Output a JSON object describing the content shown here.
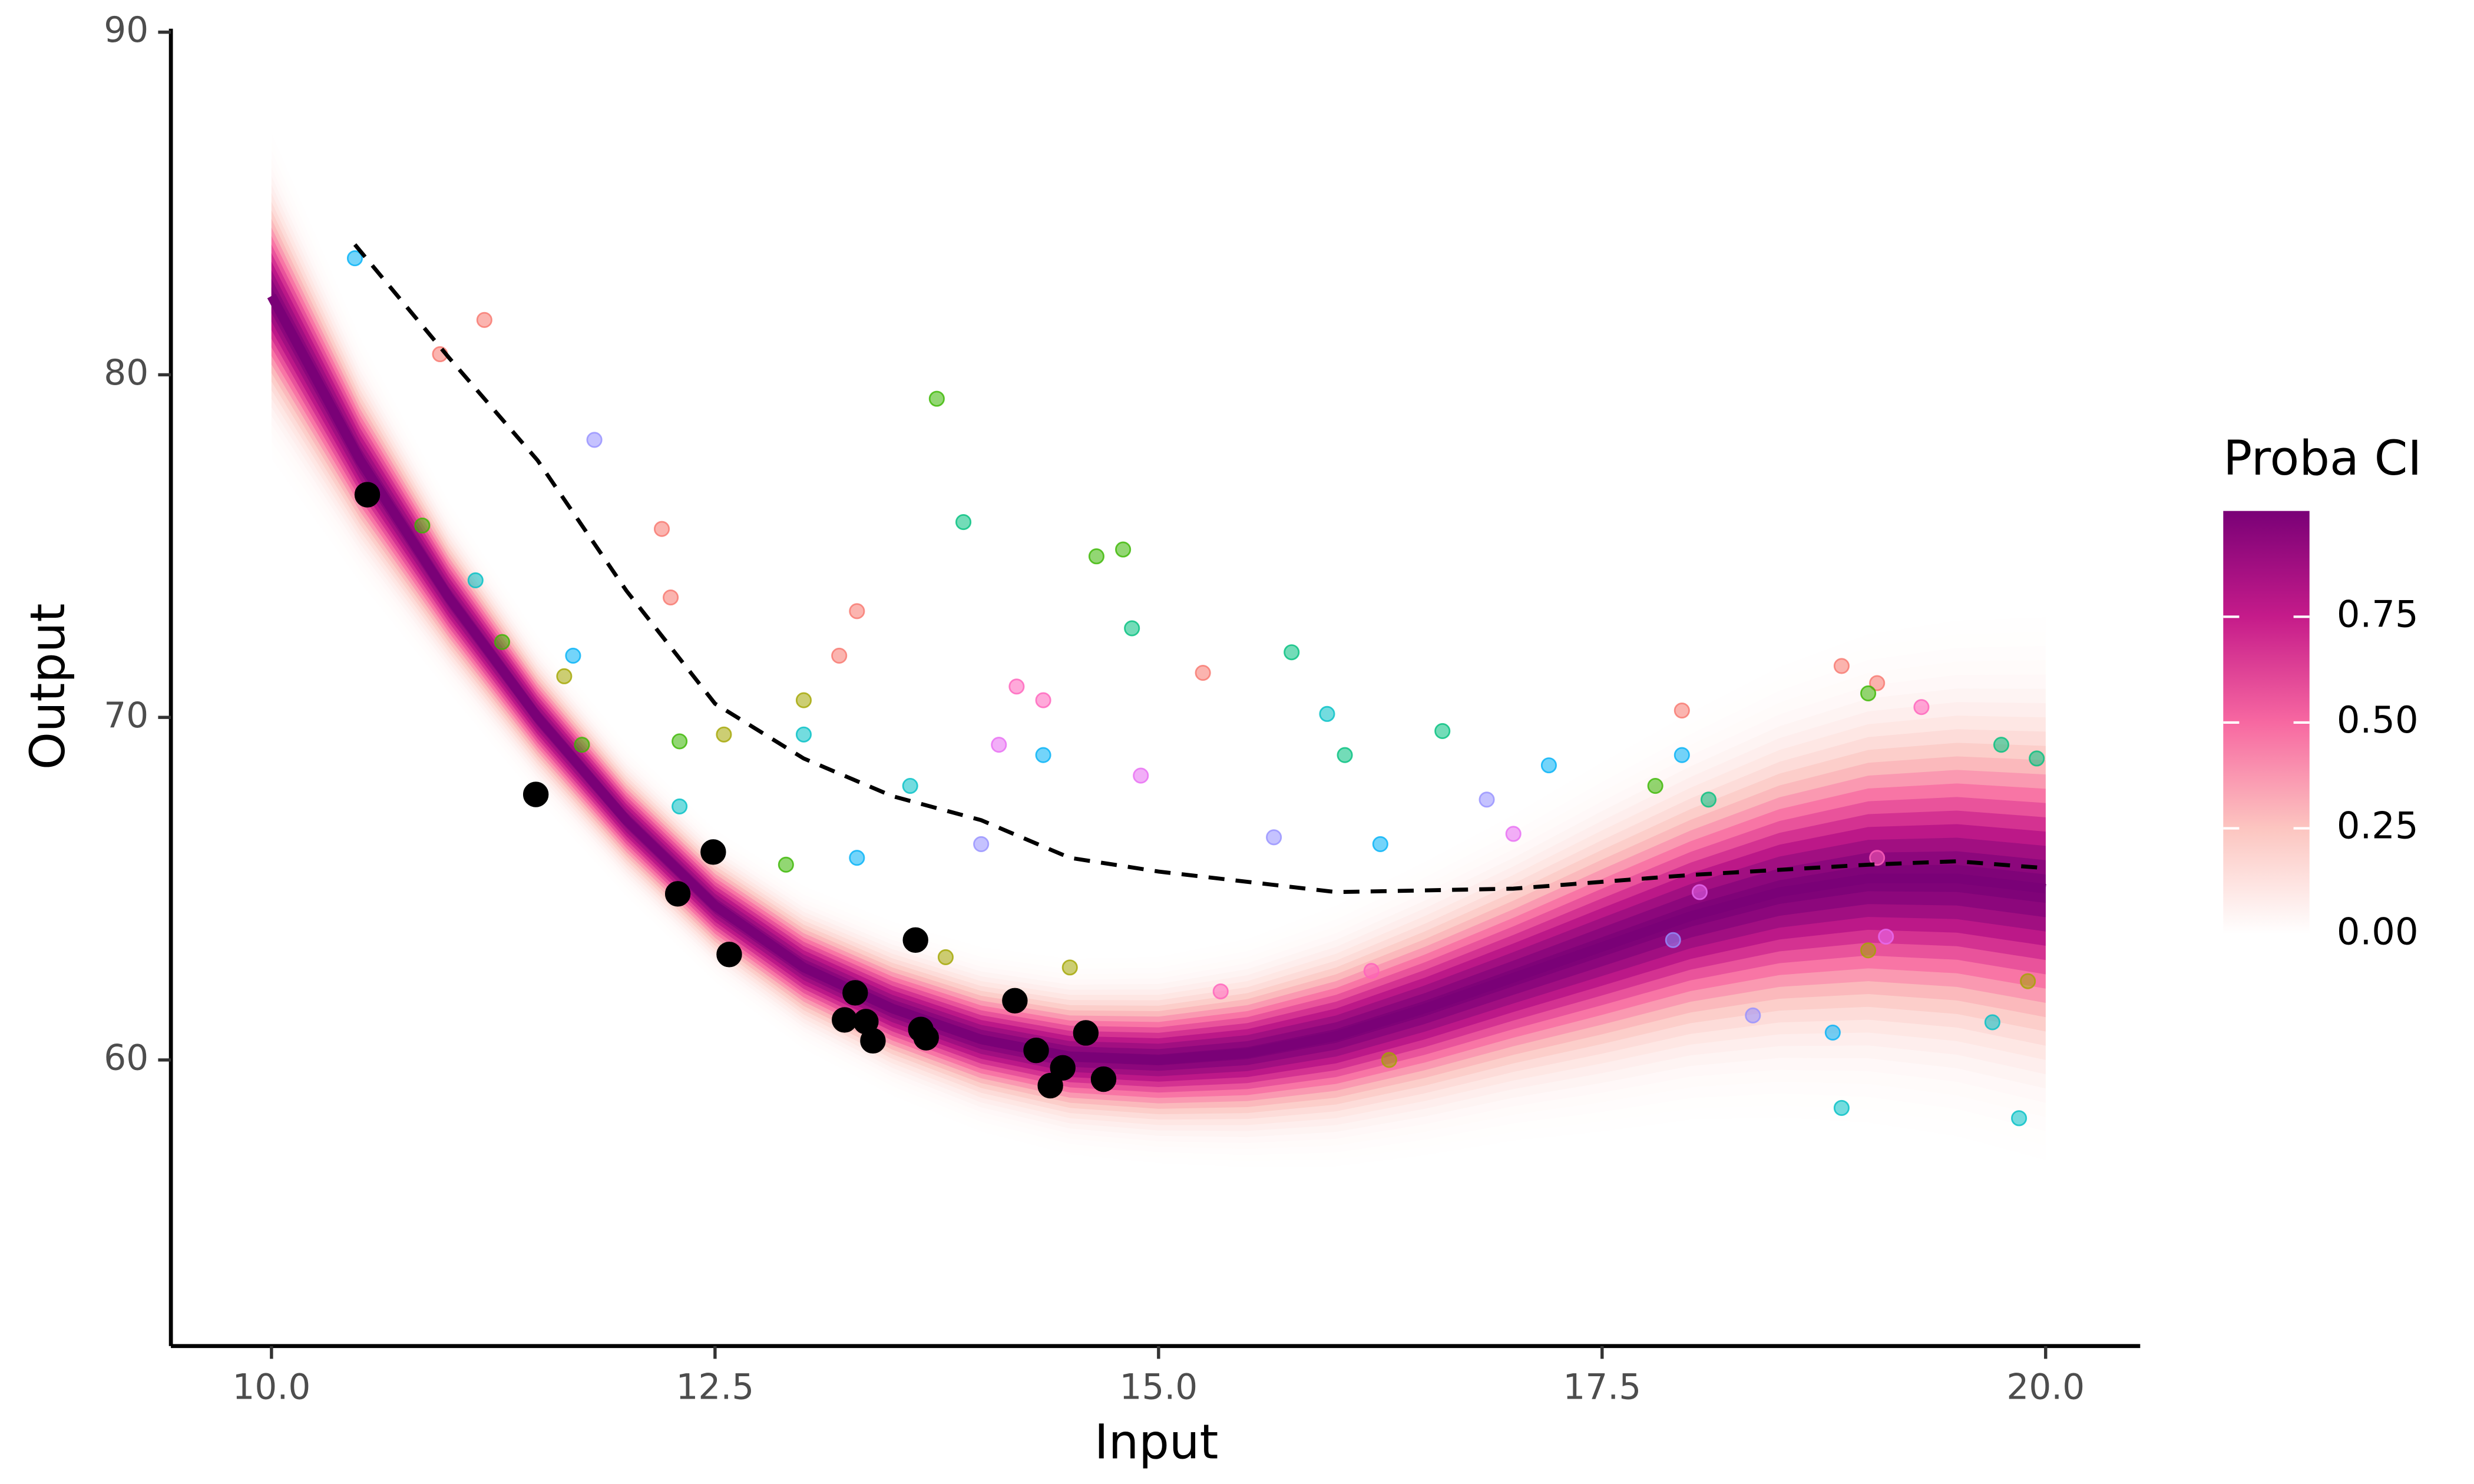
{
  "chart_data": {
    "type": "scatter",
    "xlabel": "Input",
    "ylabel": "Output",
    "xlim": [
      9.433,
      20.533
    ],
    "ylim": [
      51.65,
      90.1
    ],
    "xticks": [
      {
        "value": 10,
        "label": "10.0"
      },
      12.5,
      {
        "value": 15,
        "label": "15.0"
      },
      17.5,
      {
        "value": 20,
        "label": "20.0"
      }
    ],
    "yticks": [
      60,
      70,
      80,
      90
    ],
    "band": {
      "x": [
        10,
        10.5,
        11,
        11.5,
        12,
        12.5,
        13,
        13.5,
        14,
        14.5,
        15,
        15.5,
        16,
        16.5,
        17,
        17.5,
        18,
        18.5,
        19,
        19.5,
        20
      ],
      "center": [
        82.3,
        77.5,
        73.5,
        70,
        67,
        64.5,
        62.7,
        61.5,
        60.6,
        60.1,
        60,
        60.2,
        60.7,
        61.5,
        62.4,
        63.3,
        64.2,
        64.9,
        65.3,
        65.3,
        65
      ],
      "halfwidth": [
        6,
        4.5,
        3.5,
        3,
        2.8,
        2.8,
        3,
        3.2,
        3.4,
        3.6,
        3.8,
        4.2,
        4.8,
        5.4,
        6,
        6.8,
        7.5,
        8.3,
        9,
        9.5,
        10
      ]
    },
    "line": {
      "color": "#000000",
      "dashed": true,
      "x": [
        10.47,
        11,
        11.5,
        12,
        12.5,
        13,
        13.5,
        14,
        14.5,
        15,
        16,
        17,
        18,
        19,
        19.5,
        20
      ],
      "values": [
        83.8,
        80.5,
        77.5,
        73.7,
        70.4,
        68.8,
        67.7,
        67.0,
        65.9,
        65.5,
        64.9,
        65.0,
        65.4,
        65.7,
        65.8,
        65.6
      ]
    },
    "series": [
      {
        "color": "#F8766D",
        "x": [
          11.2,
          10.95,
          12.2,
          12.25,
          13.2,
          18.85,
          19.05,
          17.95,
          15.25,
          13.3
        ],
        "values": [
          81.6,
          80.6,
          75.5,
          73.5,
          71.8,
          71.5,
          71.0,
          70.2,
          71.3,
          73.1
        ]
      },
      {
        "color": "#A3A500",
        "x": [
          11.65,
          12.55,
          13.0,
          14.5,
          16.3,
          19.0,
          19.9,
          13.8
        ],
        "values": [
          71.2,
          69.5,
          70.5,
          62.7,
          60.0,
          63.2,
          62.3,
          63.0
        ]
      },
      {
        "color": "#39B600",
        "x": [
          10.85,
          11.3,
          11.75,
          12.3,
          12.9,
          13.75,
          14.65,
          14.8,
          17.8,
          19.0
        ],
        "values": [
          75.6,
          72.2,
          69.2,
          69.3,
          65.7,
          79.3,
          74.7,
          74.9,
          68.0,
          70.7
        ]
      },
      {
        "color": "#00BF7D",
        "x": [
          13.9,
          14.85,
          15.75,
          16.6,
          18.1,
          19.75,
          19.95,
          16.05
        ],
        "values": [
          75.7,
          72.6,
          71.9,
          69.6,
          67.6,
          69.2,
          68.8,
          68.9
        ]
      },
      {
        "color": "#00BFC4",
        "x": [
          11.15,
          12.3,
          13.0,
          13.6,
          15.95,
          18.85,
          19.85,
          19.7
        ],
        "values": [
          74.0,
          67.4,
          69.5,
          68.0,
          70.1,
          58.6,
          58.3,
          61.1
        ]
      },
      {
        "color": "#00B0F6",
        "x": [
          10.47,
          11.7,
          13.3,
          14.35,
          16.25,
          17.2,
          17.95,
          18.8
        ],
        "values": [
          83.4,
          71.8,
          65.9,
          68.9,
          66.3,
          68.6,
          68.9,
          60.8
        ]
      },
      {
        "color": "#9590FF",
        "x": [
          11.82,
          14.0,
          15.65,
          16.85,
          17.9,
          18.35
        ],
        "values": [
          78.1,
          66.3,
          66.5,
          67.6,
          63.5,
          61.3
        ]
      },
      {
        "color": "#E76BF3",
        "x": [
          14.1,
          14.9,
          17.0,
          18.05,
          19.1
        ],
        "values": [
          69.2,
          68.3,
          66.6,
          64.9,
          63.6
        ]
      },
      {
        "color": "#FF62BC",
        "x": [
          14.2,
          14.35,
          15.35,
          16.2,
          19.3,
          19.05
        ],
        "values": [
          70.9,
          70.5,
          62.0,
          62.6,
          70.3,
          65.9
        ]
      },
      {
        "color": "#000000",
        "x": [
          10.54,
          11.49,
          12.29,
          12.49,
          12.58,
          13.23,
          13.29,
          13.35,
          13.39,
          13.63,
          13.66,
          13.69,
          14.19,
          14.31,
          14.39,
          14.46,
          14.59,
          14.69
        ],
        "values": [
          76.5,
          67.75,
          64.85,
          66.07,
          63.08,
          61.17,
          61.96,
          61.12,
          60.56,
          63.5,
          60.89,
          60.65,
          61.73,
          60.28,
          59.25,
          59.77,
          60.79,
          59.44
        ]
      }
    ],
    "colorbar": {
      "title": "Proba CI",
      "lim": [
        0,
        1
      ],
      "ticks": [
        {
          "value": 0,
          "label": "0.00"
        },
        {
          "value": 0.25,
          "label": "0.25"
        },
        {
          "value": 0.5,
          "label": "0.50"
        },
        {
          "value": 0.75,
          "label": "0.75"
        }
      ],
      "colormap": [
        "#ffffff",
        "#fcc5c0",
        "#f768a1",
        "#c51b8a",
        "#7a0177"
      ]
    }
  }
}
